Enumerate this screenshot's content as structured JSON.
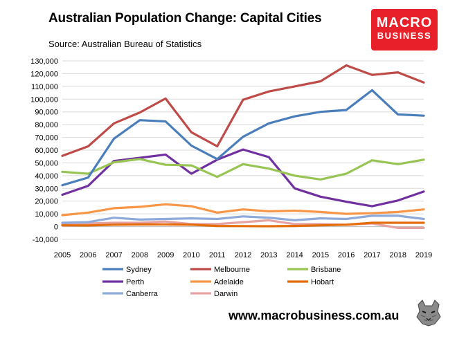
{
  "header": {
    "title": "Australian Population Change: Capital Cities",
    "subtitle": "Source: Australian Bureau of Statistics"
  },
  "logo": {
    "line1": "MACRO",
    "line2": "BUSINESS",
    "color": "#e8202a"
  },
  "footer": {
    "url": "www.macrobusiness.com.au"
  },
  "chart_data": {
    "type": "line",
    "title": "Australian Population Change: Capital Cities",
    "xlabel": "",
    "ylabel": "",
    "x": [
      "2005",
      "2006",
      "2007",
      "2008",
      "2009",
      "2010",
      "2011",
      "2012",
      "2013",
      "2014",
      "2015",
      "2016",
      "2017",
      "2018",
      "2019"
    ],
    "ylim": [
      -10000,
      130000
    ],
    "ytick_step": 10000,
    "ytick_labels": [
      "-10,000",
      "0",
      "10,000",
      "20,000",
      "30,000",
      "40,000",
      "50,000",
      "60,000",
      "70,000",
      "80,000",
      "90,000",
      "100,000",
      "110,000",
      "120,000",
      "130,000"
    ],
    "grid": true,
    "legend_position": "bottom",
    "series": [
      {
        "name": "Sydney",
        "color": "#4a7ebb",
        "values": [
          32500,
          38500,
          69000,
          83500,
          82500,
          63500,
          53000,
          70500,
          81000,
          86500,
          90000,
          91500,
          107000,
          88000,
          87000
        ]
      },
      {
        "name": "Melbourne",
        "color": "#be4b48",
        "values": [
          55500,
          63000,
          81000,
          89500,
          100500,
          74000,
          63000,
          99500,
          106000,
          110000,
          114000,
          126500,
          119000,
          121000,
          113000
        ]
      },
      {
        "name": "Brisbane",
        "color": "#98c454",
        "values": [
          43000,
          41500,
          50500,
          53000,
          48500,
          48000,
          39000,
          49000,
          45500,
          40000,
          37000,
          41500,
          52000,
          49000,
          52500
        ]
      },
      {
        "name": "Perth",
        "color": "#7030a0",
        "values": [
          25000,
          32000,
          51500,
          54000,
          56500,
          41500,
          52500,
          60500,
          54500,
          30000,
          23500,
          19500,
          16000,
          20500,
          27500
        ]
      },
      {
        "name": "Adelaide",
        "color": "#f79646",
        "values": [
          9000,
          11000,
          14500,
          15500,
          17500,
          16000,
          11000,
          13500,
          12000,
          12500,
          11500,
          10000,
          10500,
          11500,
          13500
        ]
      },
      {
        "name": "Hobart",
        "color": "#e46c0a",
        "values": [
          1000,
          900,
          1500,
          1700,
          1800,
          1500,
          500,
          400,
          300,
          500,
          1000,
          1500,
          3000,
          3000,
          3000
        ]
      },
      {
        "name": "Canberra",
        "color": "#8eaadb",
        "values": [
          3000,
          3500,
          7000,
          5500,
          6000,
          6500,
          6000,
          8000,
          7000,
          5000,
          6500,
          6000,
          8500,
          8500,
          6000
        ]
      },
      {
        "name": "Darwin",
        "color": "#e6a3a3",
        "values": [
          2000,
          2500,
          3000,
          3000,
          4000,
          2000,
          2000,
          3500,
          5000,
          2000,
          2000,
          1500,
          2500,
          -1000,
          -1000
        ]
      }
    ]
  }
}
